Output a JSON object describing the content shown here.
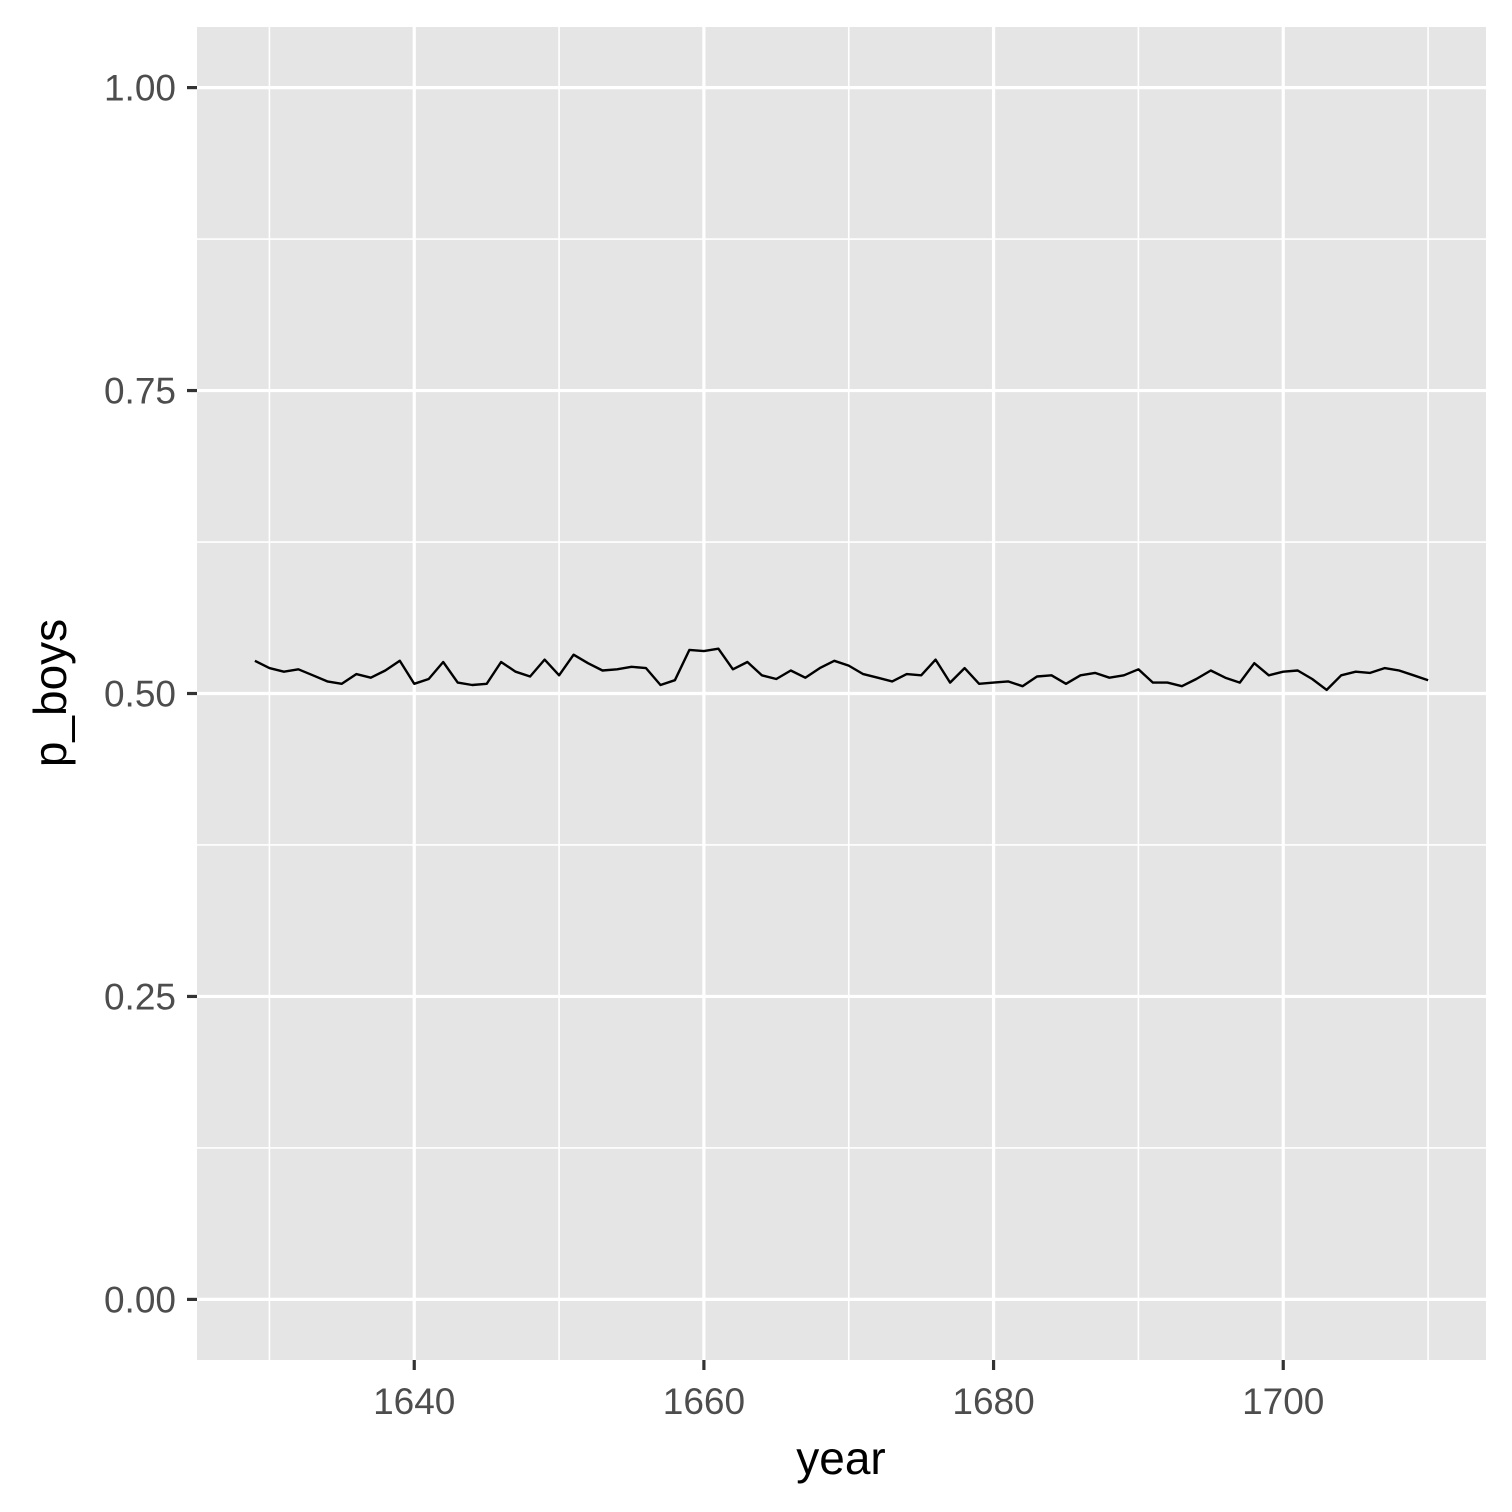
{
  "chart_data": {
    "type": "line",
    "title": "",
    "xlabel": "year",
    "ylabel": "p_boys",
    "xlim": [
      1625,
      1714
    ],
    "ylim": [
      -0.05,
      1.05
    ],
    "x_ticks": [
      1640,
      1660,
      1680,
      1700
    ],
    "x_tick_labels": [
      "1640",
      "1660",
      "1680",
      "1700"
    ],
    "y_ticks": [
      0,
      0.25,
      0.5,
      0.75,
      1
    ],
    "y_tick_labels": [
      "0.00",
      "0.25",
      "0.50",
      "0.75",
      "1.00"
    ],
    "x_minor_ticks": [
      1630,
      1650,
      1670,
      1690,
      1710
    ],
    "y_minor_ticks": [
      0.125,
      0.375,
      0.625,
      0.875
    ],
    "grid": true,
    "legend": "none",
    "colors": {
      "panel": "#e5e5e5",
      "grid": "#ffffff",
      "line": "#000000",
      "tick_label": "#4d4d4d",
      "axis_title": "#000000"
    },
    "series": [
      {
        "x": [
          1629,
          1630,
          1631,
          1632,
          1633,
          1634,
          1635,
          1636,
          1637,
          1638,
          1639,
          1640,
          1641,
          1642,
          1643,
          1644,
          1645,
          1646,
          1647,
          1648,
          1649,
          1650,
          1651,
          1652,
          1653,
          1654,
          1655,
          1656,
          1657,
          1658,
          1659,
          1660,
          1661,
          1662,
          1663,
          1664,
          1665,
          1666,
          1667,
          1668,
          1669,
          1670,
          1671,
          1672,
          1673,
          1674,
          1675,
          1676,
          1677,
          1678,
          1679,
          1680,
          1681,
          1682,
          1683,
          1684,
          1685,
          1686,
          1687,
          1688,
          1689,
          1690,
          1691,
          1692,
          1693,
          1694,
          1695,
          1696,
          1697,
          1698,
          1699,
          1700,
          1701,
          1702,
          1703,
          1704,
          1705,
          1706,
          1707,
          1708,
          1709,
          1710
        ],
        "y": [
          0.527,
          0.521,
          0.518,
          0.52,
          0.515,
          0.51,
          0.508,
          0.516,
          0.513,
          0.519,
          0.527,
          0.508,
          0.512,
          0.526,
          0.509,
          0.507,
          0.508,
          0.526,
          0.518,
          0.514,
          0.528,
          0.515,
          0.532,
          0.525,
          0.519,
          0.52,
          0.522,
          0.521,
          0.507,
          0.511,
          0.536,
          0.535,
          0.537,
          0.52,
          0.526,
          0.515,
          0.512,
          0.519,
          0.513,
          0.521,
          0.527,
          0.523,
          0.516,
          0.513,
          0.51,
          0.516,
          0.515,
          0.528,
          0.509,
          0.521,
          0.508,
          0.509,
          0.51,
          0.506,
          0.514,
          0.515,
          0.508,
          0.515,
          0.517,
          0.513,
          0.515,
          0.52,
          0.509,
          0.509,
          0.506,
          0.512,
          0.519,
          0.513,
          0.509,
          0.525,
          0.515,
          0.518,
          0.519,
          0.512,
          0.503,
          0.515,
          0.518,
          0.517,
          0.521,
          0.519,
          0.515,
          0.511
        ]
      }
    ]
  }
}
